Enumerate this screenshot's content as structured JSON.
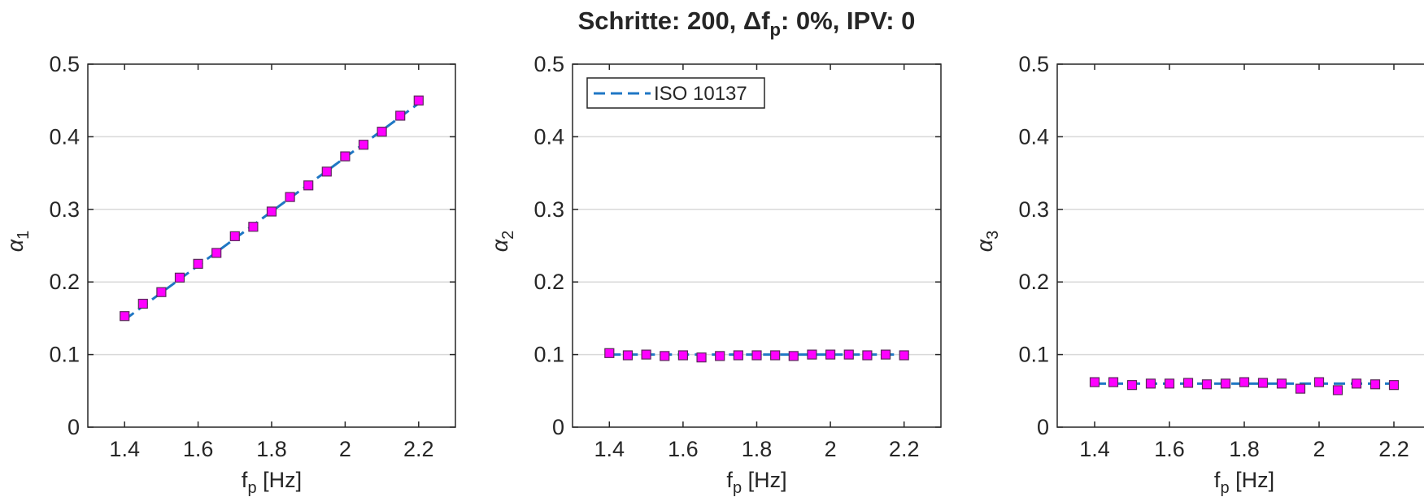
{
  "title": {
    "prefix": "Schritte: 200, Δf",
    "sub": "p",
    "suffix": ": 0%, IPV: 0"
  },
  "colors": {
    "line": "#1f77c4",
    "marker_fill": "#ff00ff",
    "marker_edge": "#5a2a5a",
    "grid": "#d9d9d9",
    "axis": "#262626"
  },
  "chart_data": [
    {
      "type": "line",
      "xlabel": "f_p [Hz]",
      "ylabel": "α_1",
      "xlabel_main": "f",
      "xlabel_sub": "p",
      "xlabel_unit": " [Hz]",
      "ylabel_main": "α",
      "ylabel_sub": "1",
      "xlim": [
        1.3,
        2.3
      ],
      "ylim": [
        0,
        0.5
      ],
      "xticks": [
        1.4,
        1.6,
        1.8,
        2,
        2.2
      ],
      "xtick_labels": [
        "1.4",
        "1.6",
        "1.8",
        "2",
        "2.2"
      ],
      "yticks": [
        0,
        0.1,
        0.2,
        0.3,
        0.4,
        0.5
      ],
      "ytick_labels": [
        "0",
        "0.1",
        "0.2",
        "0.3",
        "0.4",
        "0.5"
      ],
      "grid": "horizontal",
      "legend": null,
      "series": [
        {
          "style": "dashed-line",
          "x": [
            1.4,
            2.2
          ],
          "y": [
            0.148,
            0.446
          ]
        },
        {
          "style": "square-markers",
          "x": [
            1.4,
            1.45,
            1.5,
            1.55,
            1.6,
            1.65,
            1.7,
            1.75,
            1.8,
            1.85,
            1.9,
            1.95,
            2.0,
            2.05,
            2.1,
            2.15,
            2.2
          ],
          "y": [
            0.153,
            0.17,
            0.186,
            0.206,
            0.225,
            0.24,
            0.263,
            0.276,
            0.297,
            0.317,
            0.333,
            0.352,
            0.373,
            0.389,
            0.407,
            0.429,
            0.45
          ]
        }
      ]
    },
    {
      "type": "line",
      "xlabel": "f_p [Hz]",
      "ylabel": "α_2",
      "xlabel_main": "f",
      "xlabel_sub": "p",
      "xlabel_unit": " [Hz]",
      "ylabel_main": "α",
      "ylabel_sub": "2",
      "xlim": [
        1.3,
        2.3
      ],
      "ylim": [
        0,
        0.5
      ],
      "xticks": [
        1.4,
        1.6,
        1.8,
        2,
        2.2
      ],
      "xtick_labels": [
        "1.4",
        "1.6",
        "1.8",
        "2",
        "2.2"
      ],
      "yticks": [
        0,
        0.1,
        0.2,
        0.3,
        0.4,
        0.5
      ],
      "ytick_labels": [
        "0",
        "0.1",
        "0.2",
        "0.3",
        "0.4",
        "0.5"
      ],
      "grid": "horizontal",
      "legend": {
        "placement": "top-left",
        "entries": [
          "ISO 10137"
        ]
      },
      "series": [
        {
          "name": "ISO 10137",
          "style": "dashed-line",
          "x": [
            1.4,
            2.2
          ],
          "y": [
            0.1,
            0.1
          ]
        },
        {
          "style": "square-markers",
          "x": [
            1.4,
            1.45,
            1.5,
            1.55,
            1.6,
            1.65,
            1.7,
            1.75,
            1.8,
            1.85,
            1.9,
            1.95,
            2.0,
            2.05,
            2.1,
            2.15,
            2.2
          ],
          "y": [
            0.102,
            0.099,
            0.1,
            0.098,
            0.099,
            0.096,
            0.098,
            0.099,
            0.099,
            0.099,
            0.098,
            0.1,
            0.1,
            0.1,
            0.099,
            0.1,
            0.099
          ]
        }
      ]
    },
    {
      "type": "line",
      "xlabel": "f_p [Hz]",
      "ylabel": "α_3",
      "xlabel_main": "f",
      "xlabel_sub": "p",
      "xlabel_unit": " [Hz]",
      "ylabel_main": "α",
      "ylabel_sub": "3",
      "xlim": [
        1.3,
        2.3
      ],
      "ylim": [
        0,
        0.5
      ],
      "xticks": [
        1.4,
        1.6,
        1.8,
        2,
        2.2
      ],
      "xtick_labels": [
        "1.4",
        "1.6",
        "1.8",
        "2",
        "2.2"
      ],
      "yticks": [
        0,
        0.1,
        0.2,
        0.3,
        0.4,
        0.5
      ],
      "ytick_labels": [
        "0",
        "0.1",
        "0.2",
        "0.3",
        "0.4",
        "0.5"
      ],
      "grid": "horizontal",
      "legend": null,
      "series": [
        {
          "style": "dashed-line",
          "x": [
            1.4,
            2.2
          ],
          "y": [
            0.06,
            0.06
          ]
        },
        {
          "style": "square-markers",
          "x": [
            1.4,
            1.45,
            1.5,
            1.55,
            1.6,
            1.65,
            1.7,
            1.75,
            1.8,
            1.85,
            1.9,
            1.95,
            2.0,
            2.05,
            2.1,
            2.15,
            2.2
          ],
          "y": [
            0.062,
            0.062,
            0.058,
            0.06,
            0.06,
            0.061,
            0.059,
            0.06,
            0.062,
            0.061,
            0.06,
            0.053,
            0.062,
            0.051,
            0.06,
            0.059,
            0.058
          ]
        }
      ]
    }
  ]
}
